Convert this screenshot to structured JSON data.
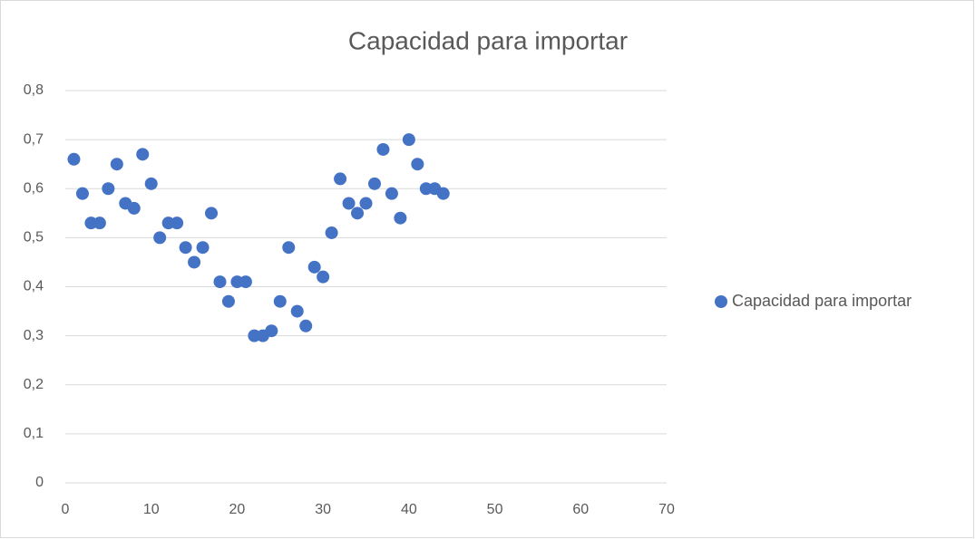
{
  "chart_data": {
    "type": "scatter",
    "title": "Capacidad para importar",
    "series": [
      {
        "name": "Capacidad para importar",
        "color": "#4472c4",
        "x": [
          1,
          2,
          3,
          4,
          5,
          6,
          7,
          8,
          9,
          10,
          11,
          12,
          13,
          14,
          15,
          16,
          17,
          18,
          19,
          20,
          21,
          22,
          23,
          24,
          25,
          26,
          27,
          28,
          29,
          30,
          31,
          32,
          33,
          34,
          35,
          36,
          37,
          38,
          39,
          40,
          41,
          42,
          43,
          44
        ],
        "values": [
          0.66,
          0.59,
          0.53,
          0.53,
          0.6,
          0.65,
          0.57,
          0.56,
          0.67,
          0.61,
          0.5,
          0.53,
          0.53,
          0.48,
          0.45,
          0.48,
          0.55,
          0.41,
          0.37,
          0.41,
          0.41,
          0.3,
          0.3,
          0.31,
          0.37,
          0.48,
          0.35,
          0.32,
          0.44,
          0.42,
          0.51,
          0.62,
          0.57,
          0.55,
          0.57,
          0.61,
          0.68,
          0.59,
          0.54,
          0.7,
          0.65,
          0.6,
          0.6,
          0.59
        ]
      }
    ],
    "xlim": [
      0,
      70
    ],
    "xticks": [
      0,
      10,
      20,
      30,
      40,
      50,
      60,
      70
    ],
    "ylim": [
      0,
      0.8
    ],
    "yticks": [
      0,
      {
        "value": 0.1,
        "label": "0,1"
      },
      {
        "value": 0.2,
        "label": "0,2"
      },
      {
        "value": 0.3,
        "label": "0,3"
      },
      {
        "value": 0.4,
        "label": "0,4"
      },
      {
        "value": 0.5,
        "label": "0,5"
      },
      {
        "value": 0.6,
        "label": "0,6"
      },
      {
        "value": 0.7,
        "label": "0,7"
      },
      {
        "value": 0.8,
        "label": "0,8"
      }
    ],
    "grid": true,
    "legend": "right"
  }
}
